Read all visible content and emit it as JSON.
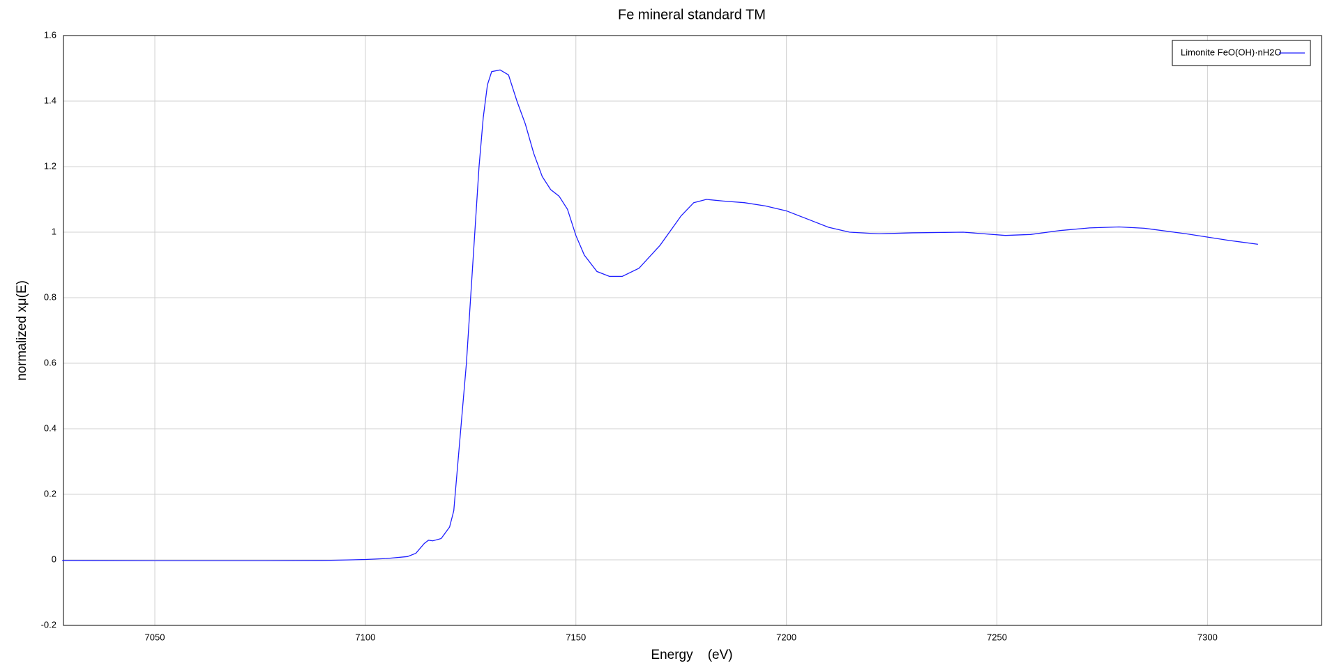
{
  "chart_data": {
    "type": "line",
    "title": "Fe mineral standard TM",
    "x_label": "Energy    (eV)",
    "y_label": "normalized xμ(E)",
    "x": [
      7028,
      7050,
      7075,
      7090,
      7100,
      7105,
      7110,
      7112,
      7114,
      7115,
      7116,
      7118,
      7120,
      7121,
      7122,
      7123,
      7124,
      7125,
      7126,
      7127,
      7128,
      7129,
      7130,
      7132,
      7134,
      7136,
      7138,
      7140,
      7142,
      7144,
      7146,
      7148,
      7150,
      7152,
      7155,
      7158,
      7161,
      7165,
      7170,
      7175,
      7178,
      7181,
      7185,
      7190,
      7195,
      7200,
      7205,
      7210,
      7215,
      7222,
      7230,
      7242,
      7252,
      7258,
      7265,
      7272,
      7279,
      7285,
      7295,
      7305,
      7312
    ],
    "series": [
      {
        "name": "Limonite FeO(OH)·nH2O",
        "color": "#1f1fff",
        "values": [
          -0.002,
          -0.003,
          -0.003,
          -0.002,
          0.001,
          0.004,
          0.01,
          0.02,
          0.05,
          0.06,
          0.058,
          0.065,
          0.1,
          0.15,
          0.3,
          0.45,
          0.6,
          0.8,
          1.0,
          1.2,
          1.35,
          1.45,
          1.49,
          1.495,
          1.48,
          1.4,
          1.33,
          1.24,
          1.17,
          1.13,
          1.11,
          1.07,
          0.99,
          0.93,
          0.88,
          0.865,
          0.865,
          0.89,
          0.96,
          1.05,
          1.09,
          1.1,
          1.095,
          1.09,
          1.08,
          1.065,
          1.04,
          1.015,
          1.0,
          0.995,
          0.998,
          1.0,
          0.99,
          0.993,
          1.005,
          1.013,
          1.016,
          1.012,
          0.995,
          0.975,
          0.963
        ]
      }
    ],
    "xlim": [
      7028.3,
      7327.1
    ],
    "ylim": [
      -0.2,
      1.6
    ],
    "xticks": [
      7050,
      7100,
      7150,
      7200,
      7250,
      7300
    ],
    "yticks": [
      -0.2,
      0,
      0.2,
      0.4,
      0.6,
      0.8,
      1,
      1.2,
      1.4,
      1.6
    ],
    "grid": true,
    "legend": "upper right"
  }
}
